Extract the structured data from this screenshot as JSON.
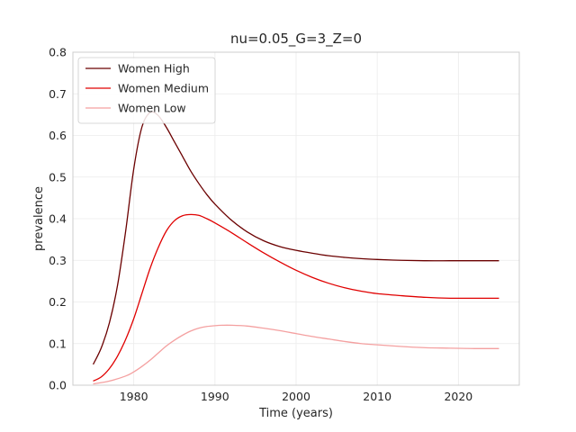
{
  "chart_data": {
    "type": "line",
    "title": "nu=0.05_G=3_Z=0",
    "xlabel": "Time (years)",
    "ylabel": "prevalence",
    "xlim": [
      1972.5,
      2027.5
    ],
    "ylim": [
      0.0,
      0.8
    ],
    "xticks": [
      1980,
      1990,
      2000,
      2010,
      2020
    ],
    "yticks": [
      0.0,
      0.1,
      0.2,
      0.3,
      0.4,
      0.5,
      0.6,
      0.7,
      0.8
    ],
    "xtick_labels": [
      "1980",
      "1990",
      "2000",
      "2010",
      "2020"
    ],
    "ytick_labels": [
      "0.0",
      "0.1",
      "0.2",
      "0.3",
      "0.4",
      "0.5",
      "0.6",
      "0.7",
      "0.8"
    ],
    "grid": true,
    "legend": {
      "position": "top-left"
    },
    "series": [
      {
        "name": "Women High",
        "color": "#6b0000",
        "x": [
          1975,
          1976,
          1977,
          1978,
          1979,
          1980,
          1981,
          1982,
          1983,
          1984,
          1985,
          1986,
          1987,
          1988,
          1989,
          1990,
          1992,
          1994,
          1996,
          1998,
          2000,
          2002,
          2004,
          2006,
          2008,
          2010,
          2013,
          2016,
          2019,
          2022,
          2025
        ],
        "y": [
          0.05,
          0.09,
          0.15,
          0.24,
          0.37,
          0.52,
          0.62,
          0.655,
          0.648,
          0.62,
          0.585,
          0.55,
          0.515,
          0.485,
          0.458,
          0.435,
          0.397,
          0.368,
          0.347,
          0.333,
          0.324,
          0.317,
          0.311,
          0.307,
          0.304,
          0.302,
          0.3,
          0.299,
          0.299,
          0.299,
          0.299
        ]
      },
      {
        "name": "Women Medium",
        "color": "#e00000",
        "x": [
          1975,
          1976,
          1977,
          1978,
          1979,
          1980,
          1981,
          1982,
          1983,
          1984,
          1985,
          1986,
          1987,
          1988,
          1989,
          1990,
          1992,
          1994,
          1996,
          1998,
          2000,
          2002,
          2004,
          2006,
          2008,
          2010,
          2013,
          2016,
          2019,
          2022,
          2025
        ],
        "y": [
          0.01,
          0.02,
          0.04,
          0.07,
          0.11,
          0.16,
          0.22,
          0.28,
          0.33,
          0.37,
          0.395,
          0.407,
          0.41,
          0.408,
          0.4,
          0.39,
          0.367,
          0.342,
          0.318,
          0.296,
          0.276,
          0.259,
          0.245,
          0.234,
          0.226,
          0.22,
          0.215,
          0.211,
          0.209,
          0.209,
          0.209
        ]
      },
      {
        "name": "Women Low",
        "color": "#f4a0a0",
        "x": [
          1975,
          1977,
          1979,
          1980,
          1981,
          1982,
          1983,
          1984,
          1985,
          1986,
          1987,
          1988,
          1989,
          1990,
          1991,
          1992,
          1994,
          1996,
          1998,
          2000,
          2002,
          2004,
          2006,
          2008,
          2010,
          2013,
          2016,
          2019,
          2022,
          2025
        ],
        "y": [
          0.003,
          0.01,
          0.022,
          0.032,
          0.045,
          0.06,
          0.077,
          0.094,
          0.108,
          0.12,
          0.13,
          0.137,
          0.141,
          0.143,
          0.144,
          0.144,
          0.142,
          0.137,
          0.131,
          0.124,
          0.117,
          0.111,
          0.105,
          0.1,
          0.097,
          0.093,
          0.09,
          0.089,
          0.088,
          0.088
        ]
      }
    ]
  }
}
